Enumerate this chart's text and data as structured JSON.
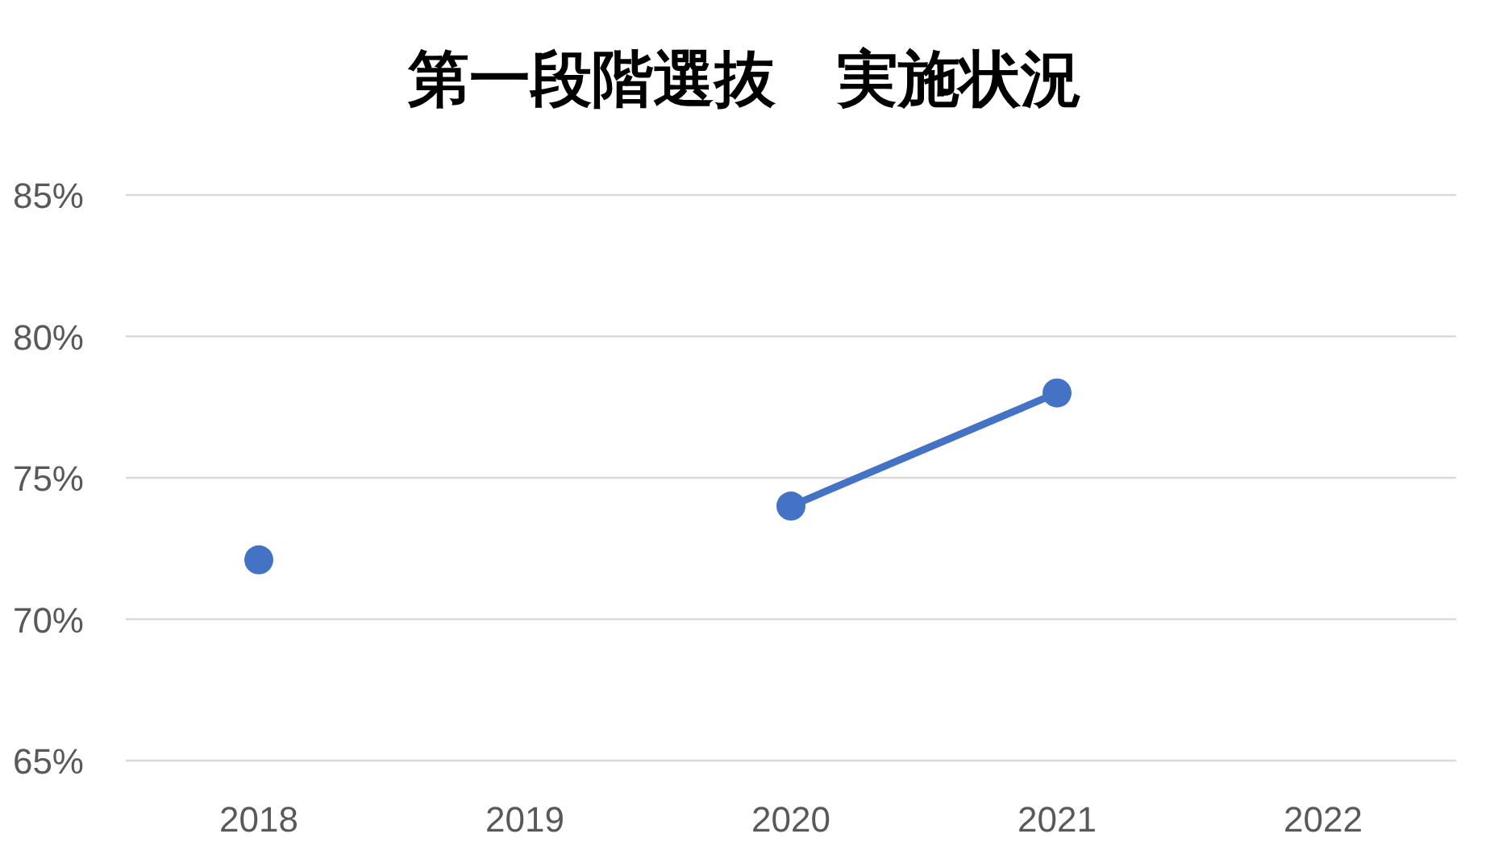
{
  "chart_data": {
    "type": "line",
    "title": "第一段階選抜　実施状況",
    "categories": [
      "2018",
      "2019",
      "2020",
      "2021",
      "2022"
    ],
    "series": [
      {
        "color": "#4472c4",
        "values": [
          72.1,
          null,
          74,
          78,
          null
        ]
      }
    ],
    "ylim": [
      65,
      85
    ],
    "yticks": [
      {
        "value": 65,
        "label": "65%"
      },
      {
        "value": 70,
        "label": "70%"
      },
      {
        "value": 75,
        "label": "75%"
      },
      {
        "value": 80,
        "label": "80%"
      },
      {
        "value": 85,
        "label": "85%"
      }
    ],
    "grid": "y",
    "marker": "circle"
  }
}
